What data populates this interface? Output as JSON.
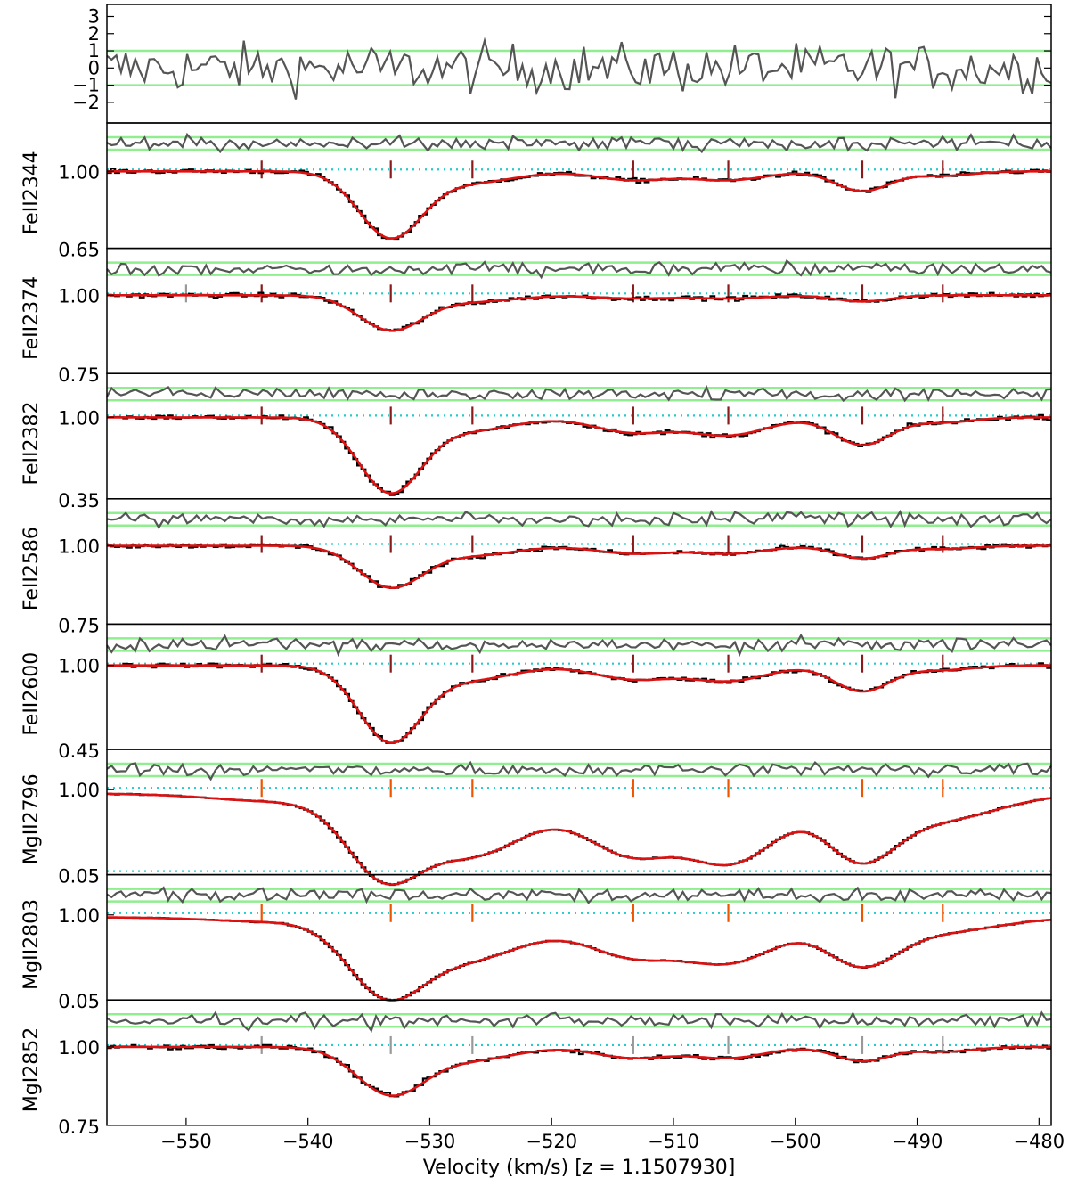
{
  "chart_data": {
    "type": "line",
    "xlabel": "Velocity (km/s) [z = 1.1507930]",
    "xlim": [
      -556.5,
      -479
    ],
    "xticks": [
      -550,
      -540,
      -530,
      -520,
      -510,
      -500,
      -490,
      -480
    ],
    "xtick_labels": [
      "−550",
      "−540",
      "−530",
      "−520",
      "−510",
      "−500",
      "−490",
      "−480"
    ],
    "component_velocities": [
      -543.8,
      -533.2,
      -526.5,
      -513.3,
      -505.5,
      -494.5,
      -487.9
    ],
    "residual_panel": {
      "ylim": [
        -3.2,
        3.7
      ],
      "yticks": [
        3,
        2,
        1,
        0,
        -1,
        -2
      ],
      "ytick_labels": [
        "3",
        "2",
        "1",
        "0",
        "−1",
        "−2"
      ],
      "bands": [
        1,
        -1
      ],
      "colors": {
        "residual": "#555555",
        "band": "#90ee90"
      }
    },
    "panels": [
      {
        "label": "FeII2344",
        "ymin_label": "0.65",
        "unity_label": "1.00",
        "ylim": [
          0.65,
          1.22
        ],
        "gray_tick": null,
        "tick_color": "#8b1a1a",
        "components": [
          {
            "v": -533.2,
            "depth": 0.3,
            "width": 2.6
          },
          {
            "v": -526.5,
            "depth": 0.05,
            "width": 3.5
          },
          {
            "v": -513.3,
            "depth": 0.04,
            "width": 3.0
          },
          {
            "v": -505.5,
            "depth": 0.04,
            "width": 3.0
          },
          {
            "v": -494.5,
            "depth": 0.09,
            "width": 2.2
          },
          {
            "v": -487.9,
            "depth": 0.02,
            "width": 2.5
          }
        ]
      },
      {
        "label": "FeII2374",
        "ymin_label": "0.75",
        "unity_label": "1.00",
        "ylim": [
          0.75,
          1.15
        ],
        "gray_tick": -550,
        "tick_color": "#8b1a1a",
        "components": [
          {
            "v": -533.2,
            "depth": 0.11,
            "width": 2.6
          },
          {
            "v": -526.5,
            "depth": 0.02,
            "width": 3.5
          },
          {
            "v": -513.3,
            "depth": 0.01,
            "width": 3.0
          },
          {
            "v": -505.5,
            "depth": 0.01,
            "width": 3.0
          },
          {
            "v": -494.5,
            "depth": 0.02,
            "width": 2.2
          }
        ]
      },
      {
        "label": "FeII2382",
        "ymin_label": "0.35",
        "unity_label": "1.00",
        "ylim": [
          0.35,
          1.35
        ],
        "gray_tick": null,
        "tick_color": "#8b1a1a",
        "components": [
          {
            "v": -533.2,
            "depth": 0.6,
            "width": 2.6
          },
          {
            "v": -526.5,
            "depth": 0.1,
            "width": 3.5
          },
          {
            "v": -513.3,
            "depth": 0.12,
            "width": 3.2
          },
          {
            "v": -505.5,
            "depth": 0.14,
            "width": 3.2
          },
          {
            "v": -494.5,
            "depth": 0.22,
            "width": 2.3
          },
          {
            "v": -487.9,
            "depth": 0.04,
            "width": 2.5
          }
        ]
      },
      {
        "label": "FeII2586",
        "ymin_label": "0.75",
        "unity_label": "1.00",
        "ylim": [
          0.75,
          1.15
        ],
        "gray_tick": null,
        "tick_color": "#8b1a1a",
        "components": [
          {
            "v": -533.2,
            "depth": 0.13,
            "width": 2.6
          },
          {
            "v": -526.5,
            "depth": 0.03,
            "width": 3.5
          },
          {
            "v": -513.3,
            "depth": 0.025,
            "width": 3.0
          },
          {
            "v": -505.5,
            "depth": 0.025,
            "width": 3.0
          },
          {
            "v": -494.5,
            "depth": 0.04,
            "width": 2.2
          },
          {
            "v": -487.9,
            "depth": 0.01,
            "width": 2.5
          }
        ]
      },
      {
        "label": "FeII2600",
        "ymin_label": "0.45",
        "unity_label": "1.00",
        "ylim": [
          0.45,
          1.27
        ],
        "gray_tick": null,
        "tick_color": "#8b1a1a",
        "components": [
          {
            "v": -533.2,
            "depth": 0.5,
            "width": 2.6
          },
          {
            "v": -526.5,
            "depth": 0.09,
            "width": 3.5
          },
          {
            "v": -513.3,
            "depth": 0.09,
            "width": 3.2
          },
          {
            "v": -505.5,
            "depth": 0.1,
            "width": 3.2
          },
          {
            "v": -494.5,
            "depth": 0.17,
            "width": 2.3
          },
          {
            "v": -487.9,
            "depth": 0.03,
            "width": 2.5
          }
        ]
      },
      {
        "label": "MgII2796",
        "ymin_label": "0.05",
        "unity_label": "1.00",
        "ylim": [
          0.05,
          1.45
        ],
        "gray_tick": null,
        "tick_color": "#ee5500",
        "components": [
          {
            "v": -543.8,
            "depth": 0.05,
            "width": 4.0
          },
          {
            "v": -533.2,
            "depth": 0.95,
            "width": 3.3
          },
          {
            "v": -526.5,
            "depth": 0.6,
            "width": 4.5
          },
          {
            "v": -513.3,
            "depth": 0.6,
            "width": 4.0
          },
          {
            "v": -505.5,
            "depth": 0.7,
            "width": 4.0
          },
          {
            "v": -494.5,
            "depth": 0.7,
            "width": 3.0
          },
          {
            "v": -487.9,
            "depth": 0.25,
            "width": 4.5
          }
        ]
      },
      {
        "label": "MgII2803",
        "ymin_label": "0.05",
        "unity_label": "1.00",
        "ylim": [
          0.05,
          1.45
        ],
        "gray_tick": null,
        "tick_color": "#ee5500",
        "components": [
          {
            "v": -543.8,
            "depth": 0.03,
            "width": 4.0
          },
          {
            "v": -533.2,
            "depth": 0.88,
            "width": 3.3
          },
          {
            "v": -526.5,
            "depth": 0.4,
            "width": 4.5
          },
          {
            "v": -513.3,
            "depth": 0.38,
            "width": 4.0
          },
          {
            "v": -505.5,
            "depth": 0.45,
            "width": 4.0
          },
          {
            "v": -494.5,
            "depth": 0.5,
            "width": 3.0
          },
          {
            "v": -487.9,
            "depth": 0.14,
            "width": 4.5
          }
        ]
      },
      {
        "label": "MgI2852",
        "ymin_label": "0.75",
        "unity_label": "1.00",
        "ylim": [
          0.75,
          1.15
        ],
        "gray_tick": null,
        "tick_color": "#999999",
        "components": [
          {
            "v": -533.2,
            "depth": 0.15,
            "width": 2.8
          },
          {
            "v": -526.5,
            "depth": 0.04,
            "width": 3.5
          },
          {
            "v": -513.3,
            "depth": 0.035,
            "width": 3.0
          },
          {
            "v": -505.5,
            "depth": 0.035,
            "width": 3.0
          },
          {
            "v": -494.5,
            "depth": 0.045,
            "width": 2.2
          },
          {
            "v": -487.9,
            "depth": 0.015,
            "width": 2.5
          }
        ]
      }
    ],
    "colors": {
      "data": "#000000",
      "model": "#dd1111",
      "continuum": "#22cccc",
      "residual": "#555555",
      "band": "#90ee90"
    }
  }
}
